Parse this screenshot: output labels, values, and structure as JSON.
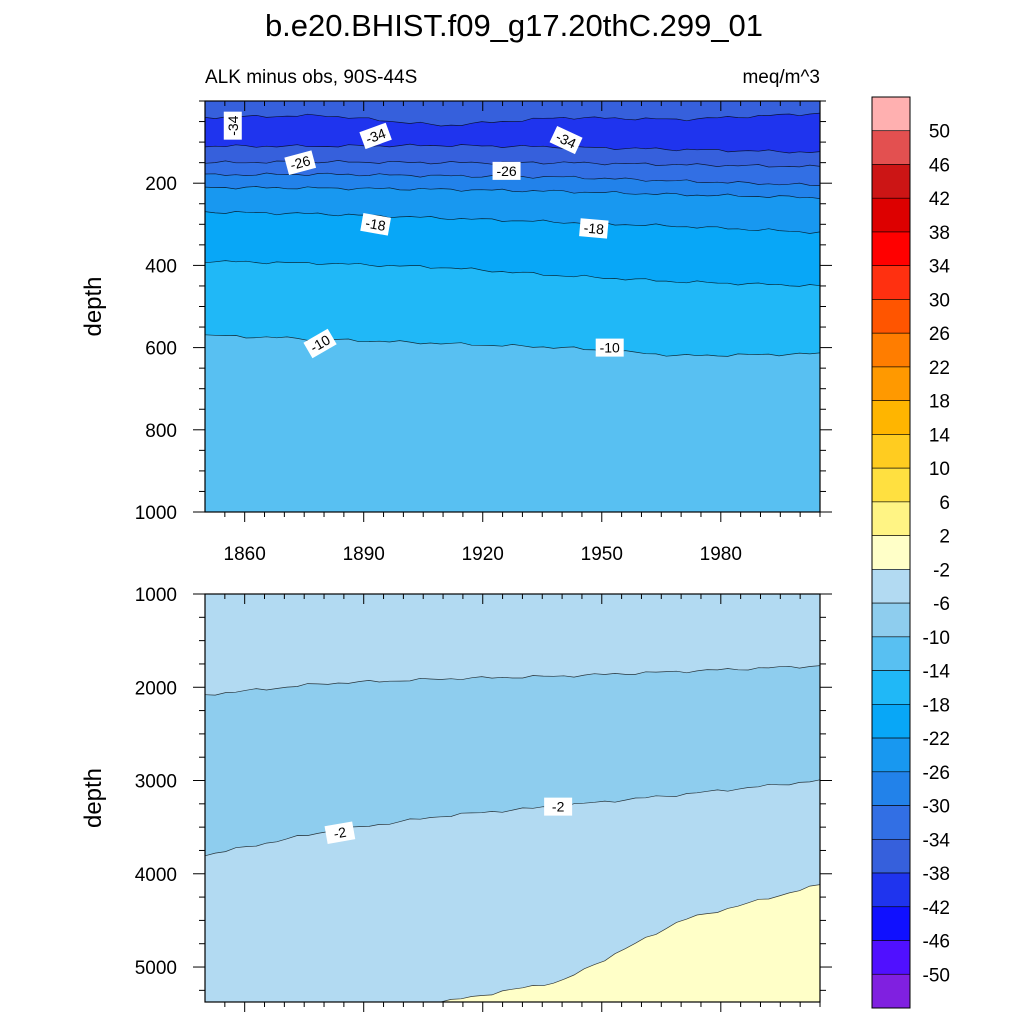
{
  "title": "b.e20.BHIST.f09_g17.20thC.299_01",
  "subtitle_left": "ALK minus obs, 90S-44S",
  "subtitle_right": "meq/m^3",
  "chart_data": [
    {
      "type": "contour",
      "name": "upper-panel",
      "ylabel": "depth",
      "xlabel": "",
      "xlim": [
        1850,
        2005
      ],
      "ylim": [
        0,
        1000
      ],
      "y_inverted": true,
      "x_ticks": [
        1860,
        1890,
        1920,
        1950,
        1980
      ],
      "y_ticks": [
        200,
        400,
        600,
        800,
        1000
      ],
      "contour_lines": [
        {
          "level": -38,
          "depth": [
            40,
            35,
            60,
            40,
            45,
            30
          ]
        },
        {
          "level": -34,
          "depth": [
            110,
            110,
            108,
            112,
            118,
            125
          ]
        },
        {
          "level": -30,
          "depth": [
            150,
            148,
            150,
            150,
            155,
            160
          ]
        },
        {
          "level": -26,
          "depth": [
            180,
            178,
            182,
            185,
            195,
            205
          ]
        },
        {
          "level": -22,
          "depth": [
            210,
            212,
            215,
            220,
            228,
            235
          ]
        },
        {
          "level": -18,
          "depth": [
            270,
            275,
            285,
            295,
            305,
            320
          ]
        },
        {
          "level": -14,
          "depth": [
            390,
            395,
            405,
            425,
            440,
            450
          ]
        },
        {
          "level": -10,
          "depth": [
            570,
            580,
            590,
            600,
            620,
            615
          ]
        }
      ],
      "contour_x": [
        1850,
        1880,
        1910,
        1940,
        1970,
        2005
      ],
      "contour_labels": [
        {
          "text": "-34",
          "x": 1857,
          "y": 60,
          "rot": -90
        },
        {
          "text": "-34",
          "x": 1893,
          "y": 85,
          "rot": -20
        },
        {
          "text": "-34",
          "x": 1941,
          "y": 95,
          "rot": 25
        },
        {
          "text": "-26",
          "x": 1874,
          "y": 150,
          "rot": -15
        },
        {
          "text": "-26",
          "x": 1926,
          "y": 170,
          "rot": 0
        },
        {
          "text": "-18",
          "x": 1893,
          "y": 300,
          "rot": 10
        },
        {
          "text": "-18",
          "x": 1948,
          "y": 310,
          "rot": 5
        },
        {
          "text": "-10",
          "x": 1879,
          "y": 590,
          "rot": -30
        },
        {
          "text": "-10",
          "x": 1952,
          "y": 600,
          "rot": 0
        }
      ]
    },
    {
      "type": "contour",
      "name": "lower-panel",
      "ylabel": "depth",
      "xlabel": "",
      "xlim": [
        1850,
        2005
      ],
      "ylim": [
        1000,
        5375
      ],
      "y_inverted": true,
      "x_ticks": [
        1860,
        1890,
        1920,
        1950,
        1980
      ],
      "y_ticks": [
        1000,
        2000,
        3000,
        4000,
        5000
      ],
      "contour_lines": [
        {
          "level": -6,
          "depth": [
            2080,
            1960,
            1910,
            1880,
            1830,
            1770
          ]
        },
        {
          "level": -2,
          "depth": [
            3800,
            3550,
            3380,
            3270,
            3150,
            3000
          ]
        },
        {
          "level": 2,
          "depth": [
            5375,
            5375,
            5375,
            5150,
            4500,
            4120
          ]
        }
      ],
      "contour_x": [
        1850,
        1880,
        1910,
        1940,
        1970,
        2005
      ],
      "contour_labels": [
        {
          "text": "-2",
          "x": 1884,
          "y": 3560,
          "rot": -10
        },
        {
          "text": "-2",
          "x": 1939,
          "y": 3280,
          "rot": 0
        }
      ]
    }
  ],
  "colorbar": {
    "levels": [
      "50",
      "46",
      "42",
      "38",
      "34",
      "30",
      "26",
      "22",
      "18",
      "14",
      "10",
      "6",
      "2",
      "-2",
      "-6",
      "-10",
      "-14",
      "-18",
      "-22",
      "-26",
      "-30",
      "-34",
      "-38",
      "-42",
      "-46",
      "-50"
    ],
    "colors": [
      "#ffb0b0",
      "#e35050",
      "#cc1515",
      "#dd0000",
      "#ff0000",
      "#ff3010",
      "#ff5500",
      "#ff7d00",
      "#ff9900",
      "#ffb500",
      "#ffcc20",
      "#ffe040",
      "#fff484",
      "#ffffc8",
      "#b2daf2",
      "#8ecdee",
      "#58c0f2",
      "#20b8f7",
      "#08a7f7",
      "#1898f0",
      "#2282ea",
      "#326fe4",
      "#3660dc",
      "#1f34ee",
      "#1010ff",
      "#5010ff",
      "#8020e0"
    ]
  }
}
